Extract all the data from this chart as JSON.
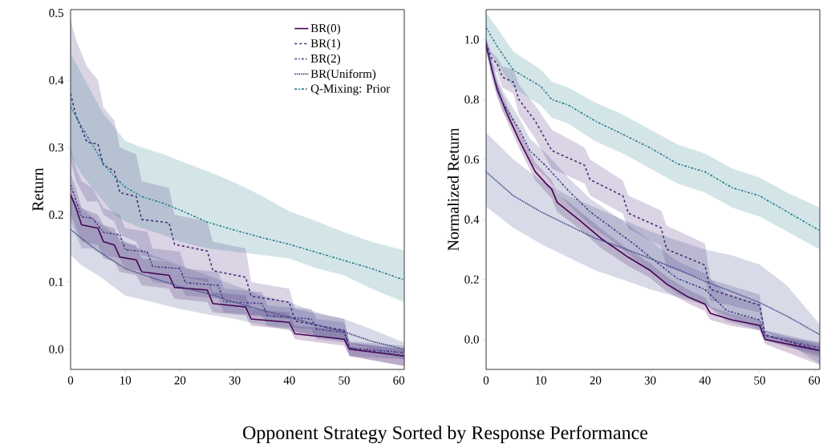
{
  "chart_data": [
    {
      "type": "line",
      "ylabel": "Return",
      "xlabel": "Opponent Strategy Sorted by Response Performance",
      "xlim": [
        0,
        61
      ],
      "ylim": [
        -0.03,
        0.505
      ],
      "xticks": [
        0,
        10,
        20,
        30,
        40,
        50,
        60
      ],
      "yticks": [
        {
          "value": 0,
          "label": "0.0"
        },
        {
          "value": 0.1,
          "label": "0.1"
        },
        {
          "value": 0.2,
          "label": "0.2"
        },
        {
          "value": 0.3,
          "label": "0.3"
        },
        {
          "value": 0.4,
          "label": "0.4"
        },
        {
          "value": 0.5,
          "label": "0.5"
        }
      ],
      "legend": "top right",
      "grid": false,
      "marker": "none",
      "series": [
        {
          "name": "BR(0)",
          "color": "#440154",
          "line_style": "solid",
          "x": [
            0,
            1,
            2,
            5,
            6,
            8,
            9,
            12,
            13,
            18,
            19,
            25,
            26,
            32,
            33,
            40,
            41,
            50,
            51,
            61
          ],
          "values": [
            0.23,
            0.21,
            0.185,
            0.18,
            0.16,
            0.155,
            0.137,
            0.133,
            0.115,
            0.11,
            0.092,
            0.088,
            0.068,
            0.063,
            0.045,
            0.04,
            0.023,
            0.015,
            0.0,
            -0.01
          ],
          "lower": [
            0.2,
            0.18,
            0.16,
            0.155,
            0.135,
            0.13,
            0.115,
            0.11,
            0.095,
            0.09,
            0.075,
            0.07,
            0.055,
            0.05,
            0.035,
            0.03,
            0.015,
            0.005,
            -0.01,
            -0.025
          ],
          "upper": [
            0.26,
            0.24,
            0.21,
            0.2,
            0.185,
            0.18,
            0.16,
            0.155,
            0.135,
            0.13,
            0.11,
            0.105,
            0.085,
            0.08,
            0.06,
            0.055,
            0.035,
            0.03,
            0.01,
            0.0
          ]
        },
        {
          "name": "BR(1)",
          "color": "#482878",
          "line_style": "dashed",
          "x": [
            0,
            1,
            3,
            5,
            6,
            8,
            9,
            12,
            13,
            18,
            19,
            25,
            26,
            32,
            33,
            40,
            41,
            50,
            51,
            61
          ],
          "values": [
            0.38,
            0.347,
            0.308,
            0.305,
            0.274,
            0.265,
            0.233,
            0.227,
            0.193,
            0.188,
            0.156,
            0.146,
            0.117,
            0.107,
            0.079,
            0.07,
            0.042,
            0.028,
            0.002,
            -0.01
          ],
          "lower": [
            0.28,
            0.25,
            0.22,
            0.22,
            0.2,
            0.19,
            0.17,
            0.16,
            0.14,
            0.13,
            0.11,
            0.1,
            0.08,
            0.07,
            0.05,
            0.045,
            0.025,
            0.015,
            -0.01,
            -0.025
          ],
          "upper": [
            0.49,
            0.46,
            0.42,
            0.4,
            0.36,
            0.34,
            0.3,
            0.29,
            0.25,
            0.24,
            0.2,
            0.19,
            0.16,
            0.15,
            0.1,
            0.09,
            0.06,
            0.045,
            0.01,
            0.0
          ]
        },
        {
          "name": "BR(2)",
          "color": "#433e85",
          "line_style": "dashdot",
          "x": [
            0,
            1,
            2,
            4,
            6,
            9,
            10,
            14,
            15,
            20,
            21,
            27,
            28,
            35,
            36,
            44,
            45,
            50,
            51,
            61
          ],
          "values": [
            0.245,
            0.221,
            0.197,
            0.195,
            0.174,
            0.17,
            0.148,
            0.145,
            0.123,
            0.12,
            0.099,
            0.095,
            0.071,
            0.068,
            0.05,
            0.045,
            0.03,
            0.025,
            0.002,
            -0.005
          ],
          "lower": [
            0.19,
            0.17,
            0.15,
            0.15,
            0.14,
            0.135,
            0.12,
            0.115,
            0.1,
            0.095,
            0.08,
            0.075,
            0.055,
            0.05,
            0.035,
            0.03,
            0.015,
            0.01,
            -0.01,
            -0.015
          ],
          "upper": [
            0.3,
            0.27,
            0.25,
            0.24,
            0.21,
            0.2,
            0.18,
            0.175,
            0.15,
            0.145,
            0.12,
            0.115,
            0.09,
            0.085,
            0.065,
            0.06,
            0.045,
            0.04,
            0.012,
            0.005
          ]
        },
        {
          "name": "BR(Uniform)",
          "color": "#3e4a89",
          "line_style": "dotted",
          "x": [
            0,
            2,
            5,
            10,
            15,
            20,
            25,
            30,
            35,
            40,
            45,
            50,
            55,
            61
          ],
          "values": [
            0.178,
            0.165,
            0.146,
            0.12,
            0.106,
            0.093,
            0.083,
            0.07,
            0.058,
            0.048,
            0.036,
            0.026,
            0.012,
            0.0
          ],
          "lower": [
            0.14,
            0.125,
            0.11,
            0.08,
            0.07,
            0.06,
            0.052,
            0.045,
            0.036,
            0.028,
            0.02,
            0.012,
            0.0,
            -0.015
          ],
          "upper": [
            0.23,
            0.21,
            0.19,
            0.16,
            0.14,
            0.125,
            0.11,
            0.095,
            0.08,
            0.07,
            0.055,
            0.045,
            0.03,
            0.01
          ]
        },
        {
          "name": "Q-Mixing: Prior",
          "color": "#287c8e",
          "line_style": "dashdot",
          "x": [
            0,
            2,
            4,
            6,
            8,
            10,
            13,
            17,
            20,
            25,
            30,
            35,
            40,
            45,
            50,
            55,
            61
          ],
          "values": [
            0.361,
            0.331,
            0.304,
            0.276,
            0.257,
            0.241,
            0.227,
            0.217,
            0.207,
            0.189,
            0.177,
            0.166,
            0.156,
            0.144,
            0.132,
            0.12,
            0.103
          ],
          "lower": [
            0.29,
            0.26,
            0.24,
            0.22,
            0.2,
            0.19,
            0.18,
            0.17,
            0.16,
            0.15,
            0.145,
            0.14,
            0.135,
            0.12,
            0.11,
            0.09,
            0.07
          ],
          "upper": [
            0.44,
            0.41,
            0.38,
            0.35,
            0.33,
            0.31,
            0.3,
            0.29,
            0.28,
            0.265,
            0.248,
            0.228,
            0.205,
            0.19,
            0.174,
            0.16,
            0.147
          ]
        }
      ]
    },
    {
      "type": "line",
      "ylabel": "Normalized Return",
      "xlim": [
        0,
        61
      ],
      "ylim": [
        -0.1,
        1.1
      ],
      "xticks": [
        0,
        10,
        20,
        30,
        40,
        50,
        60
      ],
      "yticks": [
        {
          "value": 0,
          "label": "0.0"
        },
        {
          "value": 0.2,
          "label": "0.2"
        },
        {
          "value": 0.4,
          "label": "0.4"
        },
        {
          "value": 0.6,
          "label": "0.6"
        },
        {
          "value": 0.8,
          "label": "0.8"
        },
        {
          "value": 1.0,
          "label": "1.0"
        }
      ],
      "grid": false,
      "marker": "none",
      "series": [
        {
          "color": "#440154",
          "line_style": "solid",
          "x": [
            0,
            1,
            2,
            4,
            6,
            9,
            11,
            12,
            13,
            17,
            21,
            26,
            30,
            33,
            37,
            40,
            41,
            45,
            50,
            51,
            61
          ],
          "values": [
            0.98,
            0.906,
            0.835,
            0.746,
            0.666,
            0.559,
            0.519,
            0.501,
            0.457,
            0.399,
            0.337,
            0.274,
            0.23,
            0.185,
            0.141,
            0.118,
            0.087,
            0.065,
            0.047,
            0.0,
            -0.037
          ],
          "lower": [
            0.96,
            0.885,
            0.81,
            0.72,
            0.64,
            0.53,
            0.49,
            0.47,
            0.425,
            0.37,
            0.305,
            0.245,
            0.205,
            0.16,
            0.12,
            0.095,
            0.065,
            0.045,
            0.03,
            -0.015,
            -0.085
          ],
          "upper": [
            1.0,
            0.93,
            0.86,
            0.775,
            0.695,
            0.59,
            0.55,
            0.53,
            0.49,
            0.43,
            0.37,
            0.3,
            0.255,
            0.21,
            0.165,
            0.14,
            0.11,
            0.085,
            0.065,
            0.015,
            -0.01
          ]
        },
        {
          "color": "#482878",
          "line_style": "dashed",
          "x": [
            0,
            1,
            2,
            3,
            5,
            6,
            9,
            12,
            18,
            19,
            25,
            26,
            32,
            33,
            40,
            41,
            50,
            51,
            61
          ],
          "values": [
            0.987,
            0.938,
            0.92,
            0.875,
            0.858,
            0.8,
            0.728,
            0.63,
            0.581,
            0.533,
            0.479,
            0.421,
            0.372,
            0.301,
            0.248,
            0.167,
            0.114,
            0.016,
            -0.037
          ],
          "lower": [
            0.97,
            0.91,
            0.89,
            0.84,
            0.82,
            0.75,
            0.67,
            0.57,
            0.52,
            0.48,
            0.42,
            0.37,
            0.31,
            0.24,
            0.2,
            0.13,
            0.09,
            0.0,
            -0.06
          ],
          "upper": [
            1.0,
            0.96,
            0.94,
            0.91,
            0.9,
            0.85,
            0.78,
            0.7,
            0.64,
            0.6,
            0.53,
            0.48,
            0.43,
            0.38,
            0.32,
            0.2,
            0.15,
            0.03,
            -0.02
          ]
        },
        {
          "color": "#433e85",
          "line_style": "dashdot",
          "x": [
            0,
            1,
            3,
            6,
            8,
            11,
            15,
            19,
            23,
            27,
            30,
            35,
            40,
            44,
            50,
            51,
            61
          ],
          "values": [
            0.996,
            0.898,
            0.791,
            0.702,
            0.63,
            0.577,
            0.497,
            0.426,
            0.372,
            0.319,
            0.274,
            0.203,
            0.167,
            0.096,
            0.065,
            0.012,
            -0.028
          ],
          "lower": [
            0.98,
            0.87,
            0.76,
            0.67,
            0.59,
            0.54,
            0.45,
            0.38,
            0.33,
            0.27,
            0.23,
            0.15,
            0.12,
            0.06,
            0.03,
            -0.005,
            -0.05
          ],
          "upper": [
            1.01,
            0.93,
            0.83,
            0.74,
            0.67,
            0.62,
            0.54,
            0.47,
            0.42,
            0.37,
            0.33,
            0.26,
            0.22,
            0.15,
            0.12,
            0.03,
            -0.01
          ]
        },
        {
          "color": "#3e4a89",
          "line_style": "dotted",
          "x": [
            0,
            5,
            10,
            15,
            20,
            25,
            30,
            35,
            40,
            45,
            50,
            55,
            61
          ],
          "values": [
            0.559,
            0.479,
            0.426,
            0.381,
            0.337,
            0.305,
            0.27,
            0.234,
            0.194,
            0.159,
            0.123,
            0.078,
            0.016
          ],
          "lower": [
            0.443,
            0.372,
            0.319,
            0.274,
            0.23,
            0.199,
            0.167,
            0.141,
            0.114,
            0.07,
            0.034,
            -0.011,
            -0.082
          ],
          "upper": [
            0.69,
            0.6,
            0.53,
            0.48,
            0.44,
            0.4,
            0.36,
            0.33,
            0.3,
            0.28,
            0.25,
            0.18,
            0.05
          ]
        },
        {
          "color": "#287c8e",
          "line_style": "dashdot",
          "x": [
            0,
            2,
            5,
            10,
            12,
            15,
            20,
            25,
            28,
            30,
            35,
            40,
            45,
            50,
            55,
            61
          ],
          "values": [
            1.04,
            0.978,
            0.898,
            0.844,
            0.8,
            0.782,
            0.728,
            0.684,
            0.657,
            0.639,
            0.586,
            0.559,
            0.506,
            0.479,
            0.426,
            0.363
          ],
          "lower": [
            0.98,
            0.92,
            0.84,
            0.78,
            0.74,
            0.72,
            0.66,
            0.62,
            0.59,
            0.57,
            0.52,
            0.49,
            0.44,
            0.41,
            0.36,
            0.3
          ],
          "upper": [
            1.09,
            1.04,
            0.96,
            0.9,
            0.86,
            0.84,
            0.79,
            0.75,
            0.72,
            0.7,
            0.65,
            0.62,
            0.57,
            0.54,
            0.49,
            0.44
          ]
        }
      ]
    }
  ]
}
